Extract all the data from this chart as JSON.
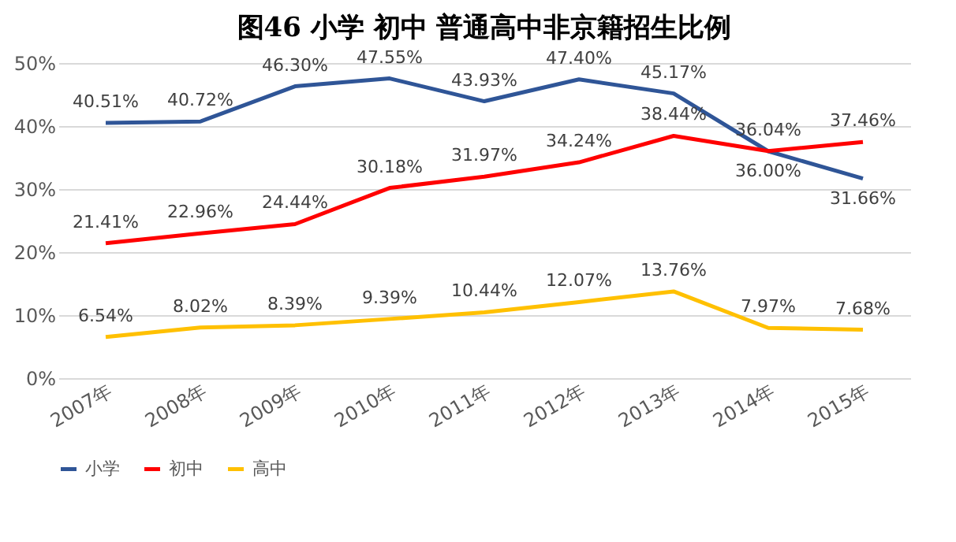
{
  "chart_data": {
    "type": "line",
    "title": "图46 小学 初中 普通高中非京籍招生比例",
    "categories": [
      "2007年",
      "2008年",
      "2009年",
      "2010年",
      "2011年",
      "2012年",
      "2013年",
      "2014年",
      "2015年"
    ],
    "series": [
      {
        "name": "小学",
        "color": "#2f5597",
        "values": [
          40.51,
          40.72,
          46.3,
          47.55,
          43.93,
          47.4,
          45.17,
          36.0,
          31.66
        ],
        "value_labels": [
          "40.51%",
          "40.72%",
          "46.30%",
          "47.55%",
          "43.93%",
          "47.40%",
          "45.17%",
          "36.00%",
          "31.66%"
        ]
      },
      {
        "name": "初中",
        "color": "#ff0000",
        "values": [
          21.41,
          22.96,
          24.44,
          30.18,
          31.97,
          34.24,
          38.44,
          36.04,
          37.46
        ],
        "value_labels": [
          "21.41%",
          "22.96%",
          "24.44%",
          "30.18%",
          "31.97%",
          "34.24%",
          "38.44%",
          "36.04%",
          "37.46%"
        ]
      },
      {
        "name": "高中",
        "color": "#ffc000",
        "values": [
          6.54,
          8.02,
          8.39,
          9.39,
          10.44,
          12.07,
          13.76,
          7.97,
          7.68
        ],
        "value_labels": [
          "6.54%",
          "8.02%",
          "8.39%",
          "9.39%",
          "10.44%",
          "12.07%",
          "13.76%",
          "7.97%",
          "7.68%"
        ]
      }
    ],
    "ylim": [
      0,
      50
    ],
    "yticks": [
      {
        "value": 0,
        "label": "0%"
      },
      {
        "value": 10,
        "label": "10%"
      },
      {
        "value": 20,
        "label": "20%"
      },
      {
        "value": 30,
        "label": "30%"
      },
      {
        "value": 40,
        "label": "40%"
      },
      {
        "value": 50,
        "label": "50%"
      }
    ],
    "grid": "y",
    "legend": "bottom",
    "marker": "none",
    "line_style": "solid"
  }
}
